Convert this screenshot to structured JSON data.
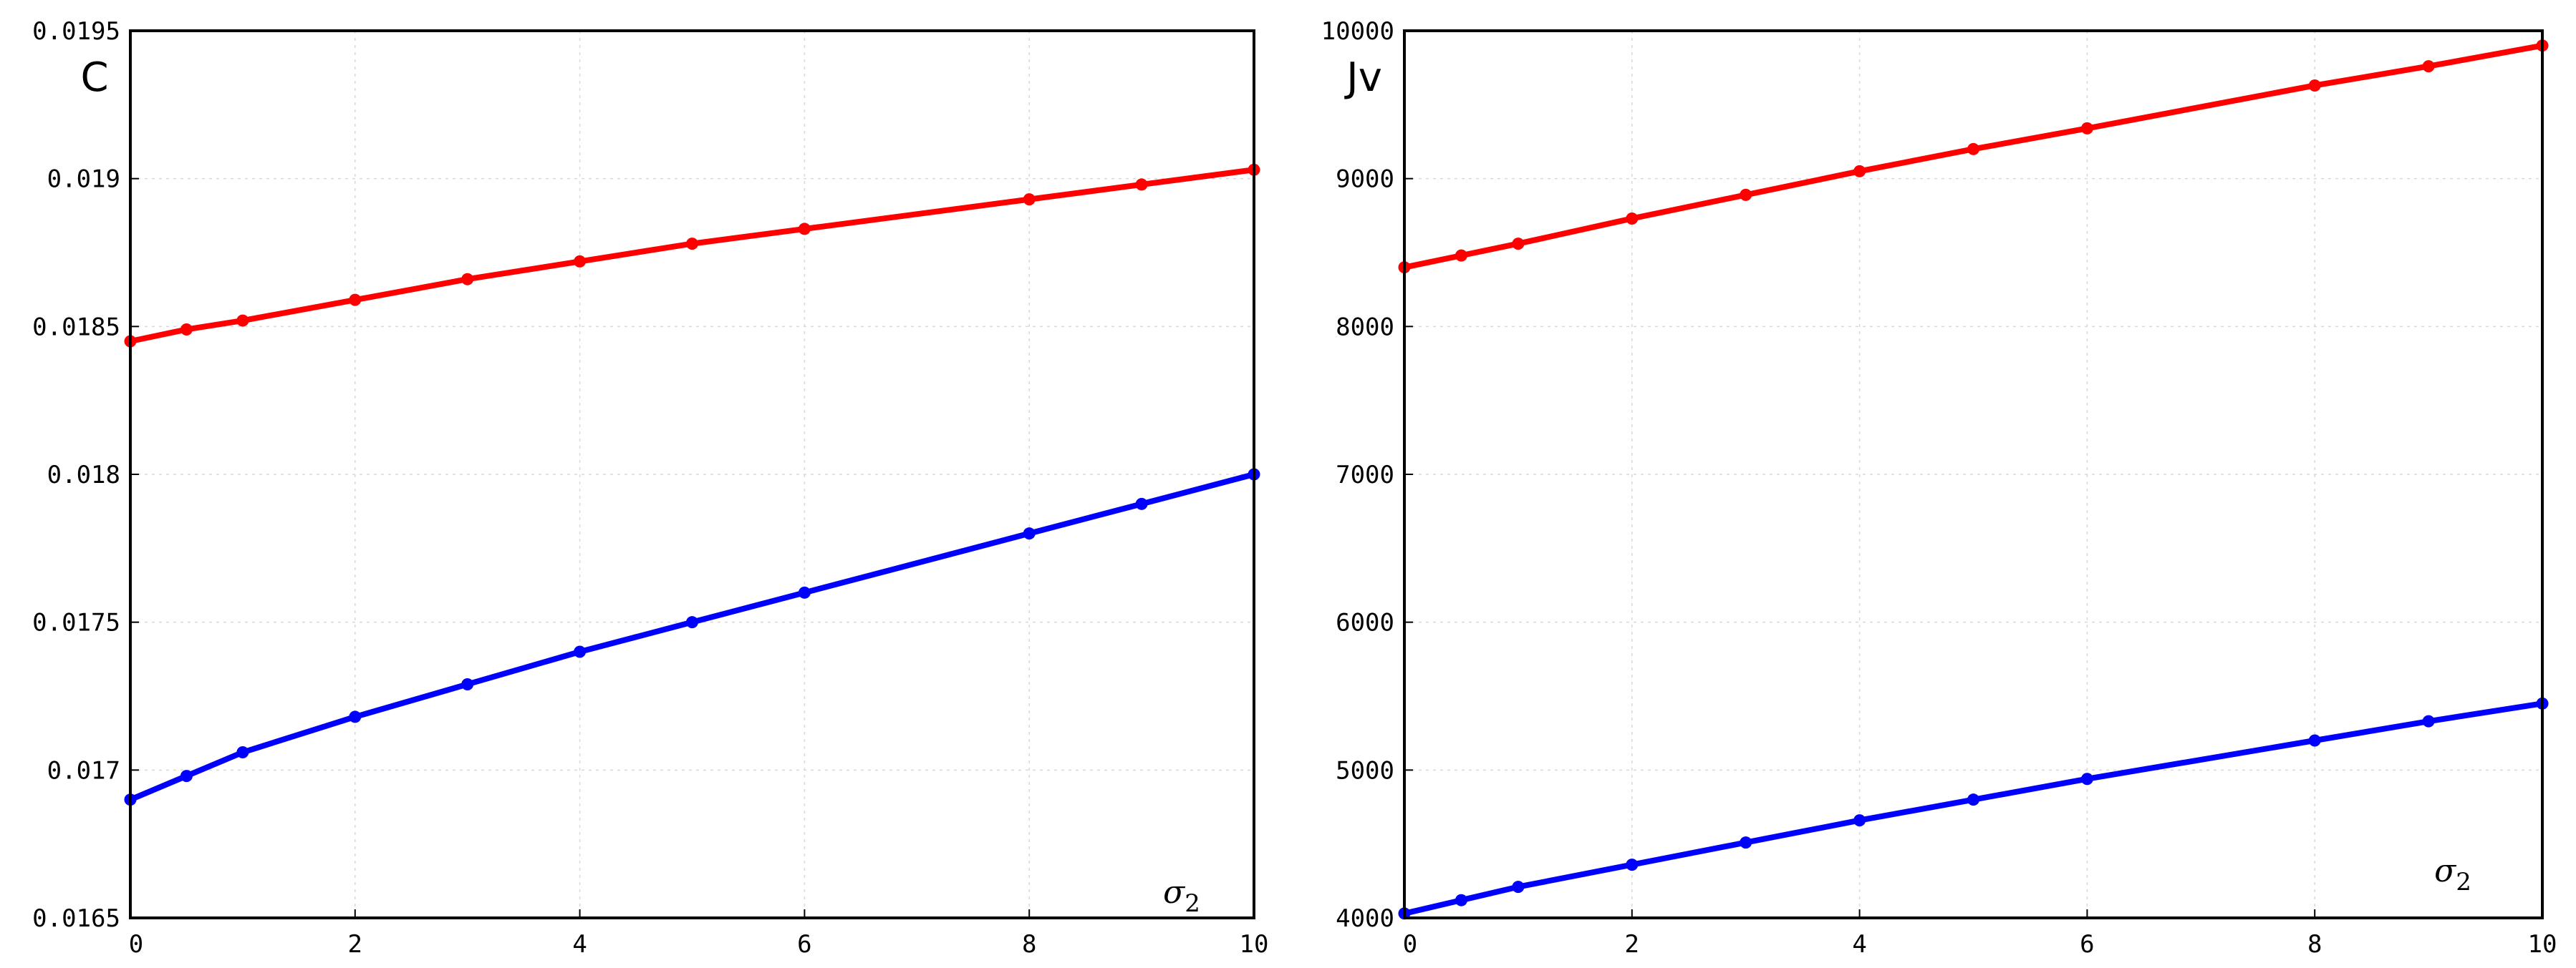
{
  "chart_data": [
    {
      "type": "line",
      "ylabel": "C",
      "xlabel": "σ",
      "xlabel_subscript": "2",
      "xlim": [
        0,
        10
      ],
      "ylim": [
        0.0165,
        0.0195
      ],
      "x_ticks": [
        0,
        2,
        4,
        6,
        8,
        10
      ],
      "x_tick_labels": [
        "0",
        "2",
        "4",
        "6",
        "8",
        "10"
      ],
      "y_ticks": [
        0.0165,
        0.017,
        0.0175,
        0.018,
        0.0185,
        0.019,
        0.0195
      ],
      "y_tick_labels": [
        "0.0165",
        "0.017",
        "0.0175",
        "0.018",
        "0.0185",
        "0.019",
        "0.0195"
      ],
      "grid": true,
      "x": [
        0,
        0.5,
        1,
        2,
        3,
        4,
        5,
        6,
        8,
        9,
        10
      ],
      "series": [
        {
          "color": "#ff0000",
          "values": [
            0.01845,
            0.01849,
            0.01852,
            0.01859,
            0.01866,
            0.01872,
            0.01878,
            0.01883,
            0.01893,
            0.01898,
            0.01903
          ]
        },
        {
          "color": "#0000ff",
          "values": [
            0.0169,
            0.01698,
            0.01706,
            0.01718,
            0.01729,
            0.0174,
            0.0175,
            0.0176,
            0.0178,
            0.0179,
            0.018
          ]
        }
      ]
    },
    {
      "type": "line",
      "ylabel": "Jv",
      "xlabel": "σ",
      "xlabel_subscript": "2",
      "xlim": [
        0,
        10
      ],
      "ylim": [
        4000,
        10000
      ],
      "x_ticks": [
        0,
        2,
        4,
        6,
        8,
        10
      ],
      "x_tick_labels": [
        "0",
        "2",
        "4",
        "6",
        "8",
        "10"
      ],
      "y_ticks": [
        4000,
        5000,
        6000,
        7000,
        8000,
        9000,
        10000
      ],
      "y_tick_labels": [
        "4000",
        "5000",
        "6000",
        "7000",
        "8000",
        "9000",
        "10000"
      ],
      "grid": true,
      "x": [
        0,
        0.5,
        1,
        2,
        3,
        4,
        5,
        6,
        8,
        9,
        10
      ],
      "series": [
        {
          "color": "#ff0000",
          "values": [
            8400,
            8480,
            8560,
            8730,
            8890,
            9050,
            9200,
            9340,
            9630,
            9760,
            9900
          ]
        },
        {
          "color": "#0000ff",
          "values": [
            4030,
            4120,
            4210,
            4360,
            4510,
            4660,
            4800,
            4940,
            5200,
            5330,
            5450
          ]
        }
      ]
    }
  ]
}
